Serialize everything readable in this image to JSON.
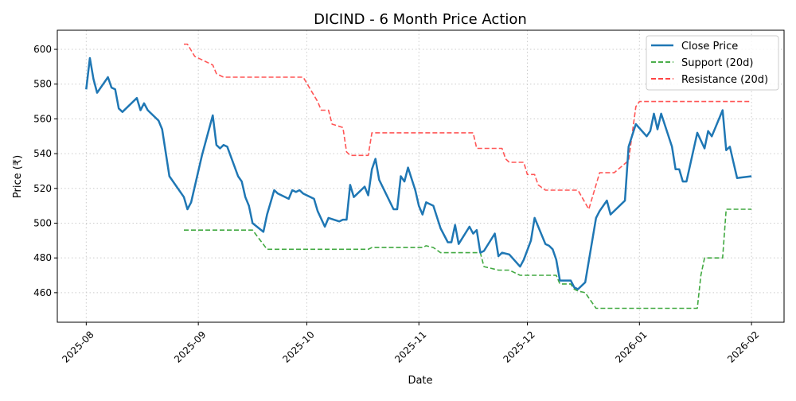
{
  "chart_data": {
    "type": "line",
    "title": "DICIND - 6 Month Price Action",
    "xlabel": "Date",
    "ylabel": "Price (₹)",
    "ylim": [
      443,
      611
    ],
    "xlim": [
      "2025-07-24",
      "2026-02-10"
    ],
    "grid": true,
    "legend_position": "top-right",
    "x_ticks": [
      "2025-08",
      "2025-09",
      "2025-10",
      "2025-11",
      "2025-12",
      "2026-01",
      "2026-02"
    ],
    "y_ticks": [
      460,
      480,
      500,
      520,
      540,
      560,
      580,
      600
    ],
    "series": [
      {
        "name": "Close Price",
        "color": "#1f77b4",
        "style": "solid",
        "points": [
          [
            "2025-08-01",
            577
          ],
          [
            "2025-08-02",
            595
          ],
          [
            "2025-08-03",
            583
          ],
          [
            "2025-08-04",
            575
          ],
          [
            "2025-08-07",
            584
          ],
          [
            "2025-08-08",
            578
          ],
          [
            "2025-08-09",
            577
          ],
          [
            "2025-08-10",
            566
          ],
          [
            "2025-08-11",
            564
          ],
          [
            "2025-08-15",
            572
          ],
          [
            "2025-08-16",
            565
          ],
          [
            "2025-08-17",
            569
          ],
          [
            "2025-08-18",
            565
          ],
          [
            "2025-08-21",
            559
          ],
          [
            "2025-08-22",
            554
          ],
          [
            "2025-08-24",
            527
          ],
          [
            "2025-08-28",
            515
          ],
          [
            "2025-08-29",
            508
          ],
          [
            "2025-08-30",
            512
          ],
          [
            "2025-09-02",
            539
          ],
          [
            "2025-09-05",
            562
          ],
          [
            "2025-09-06",
            545
          ],
          [
            "2025-09-07",
            543
          ],
          [
            "2025-09-08",
            545
          ],
          [
            "2025-09-09",
            544
          ],
          [
            "2025-09-12",
            527
          ],
          [
            "2025-09-13",
            524
          ],
          [
            "2025-09-14",
            515
          ],
          [
            "2025-09-15",
            510
          ],
          [
            "2025-09-16",
            500
          ],
          [
            "2025-09-19",
            495
          ],
          [
            "2025-09-20",
            505
          ],
          [
            "2025-09-22",
            519
          ],
          [
            "2025-09-23",
            517
          ],
          [
            "2025-09-26",
            514
          ],
          [
            "2025-09-27",
            519
          ],
          [
            "2025-09-28",
            518
          ],
          [
            "2025-09-29",
            519
          ],
          [
            "2025-09-30",
            517
          ],
          [
            "2025-10-03",
            514
          ],
          [
            "2025-10-04",
            507
          ],
          [
            "2025-10-06",
            498
          ],
          [
            "2025-10-07",
            503
          ],
          [
            "2025-10-10",
            501
          ],
          [
            "2025-10-11",
            502
          ],
          [
            "2025-10-12",
            502
          ],
          [
            "2025-10-13",
            522
          ],
          [
            "2025-10-14",
            515
          ],
          [
            "2025-10-17",
            521
          ],
          [
            "2025-10-18",
            516
          ],
          [
            "2025-10-19",
            531
          ],
          [
            "2025-10-20",
            537
          ],
          [
            "2025-10-21",
            525
          ],
          [
            "2025-10-25",
            508
          ],
          [
            "2025-10-26",
            508
          ],
          [
            "2025-10-27",
            527
          ],
          [
            "2025-10-28",
            524
          ],
          [
            "2025-10-29",
            532
          ],
          [
            "2025-10-31",
            519
          ],
          [
            "2025-11-01",
            510
          ],
          [
            "2025-11-02",
            505
          ],
          [
            "2025-11-03",
            512
          ],
          [
            "2025-11-05",
            510
          ],
          [
            "2025-11-07",
            497
          ],
          [
            "2025-11-09",
            489
          ],
          [
            "2025-11-10",
            489
          ],
          [
            "2025-11-11",
            499
          ],
          [
            "2025-11-12",
            488
          ],
          [
            "2025-11-15",
            498
          ],
          [
            "2025-11-16",
            494
          ],
          [
            "2025-11-17",
            496
          ],
          [
            "2025-11-18",
            483
          ],
          [
            "2025-11-19",
            484
          ],
          [
            "2025-11-22",
            494
          ],
          [
            "2025-11-23",
            481
          ],
          [
            "2025-11-24",
            483
          ],
          [
            "2025-11-26",
            482
          ],
          [
            "2025-11-29",
            475
          ],
          [
            "2025-11-30",
            479
          ],
          [
            "2025-12-02",
            490
          ],
          [
            "2025-12-03",
            503
          ],
          [
            "2025-12-06",
            488
          ],
          [
            "2025-12-07",
            487
          ],
          [
            "2025-12-08",
            485
          ],
          [
            "2025-12-09",
            479
          ],
          [
            "2025-12-10",
            467
          ],
          [
            "2025-12-13",
            467
          ],
          [
            "2025-12-14",
            463
          ],
          [
            "2025-12-15",
            462
          ],
          [
            "2025-12-17",
            466
          ],
          [
            "2025-12-20",
            503
          ],
          [
            "2025-12-21",
            507
          ],
          [
            "2025-12-23",
            513
          ],
          [
            "2025-12-24",
            505
          ],
          [
            "2025-12-28",
            513
          ],
          [
            "2025-12-29",
            544
          ],
          [
            "2025-12-31",
            557
          ],
          [
            "2026-01-03",
            550
          ],
          [
            "2026-01-04",
            553
          ],
          [
            "2026-01-05",
            563
          ],
          [
            "2026-01-06",
            554
          ],
          [
            "2026-01-07",
            563
          ],
          [
            "2026-01-10",
            544
          ],
          [
            "2026-01-11",
            531
          ],
          [
            "2026-01-12",
            531
          ],
          [
            "2026-01-13",
            524
          ],
          [
            "2026-01-14",
            524
          ],
          [
            "2026-01-17",
            552
          ],
          [
            "2026-01-19",
            543
          ],
          [
            "2026-01-20",
            553
          ],
          [
            "2026-01-21",
            550
          ],
          [
            "2026-01-24",
            565
          ],
          [
            "2026-01-25",
            542
          ],
          [
            "2026-01-26",
            544
          ],
          [
            "2026-01-27",
            535
          ],
          [
            "2026-01-28",
            526
          ],
          [
            "2026-02-01",
            527
          ]
        ]
      },
      {
        "name": "Support (20d)",
        "color": "#2ca02c",
        "style": "dashed",
        "points": [
          [
            "2025-08-28",
            496
          ],
          [
            "2025-09-16",
            496
          ],
          [
            "2025-09-20",
            485
          ],
          [
            "2025-10-18",
            485
          ],
          [
            "2025-10-19",
            486
          ],
          [
            "2025-11-02",
            486
          ],
          [
            "2025-11-03",
            487
          ],
          [
            "2025-11-05",
            486
          ],
          [
            "2025-11-07",
            483
          ],
          [
            "2025-11-18",
            483
          ],
          [
            "2025-11-19",
            475
          ],
          [
            "2025-11-23",
            473
          ],
          [
            "2025-11-26",
            473
          ],
          [
            "2025-11-29",
            470
          ],
          [
            "2025-12-09",
            470
          ],
          [
            "2025-12-10",
            465
          ],
          [
            "2025-12-13",
            465
          ],
          [
            "2025-12-14",
            462
          ],
          [
            "2025-12-15",
            461
          ],
          [
            "2025-12-17",
            460
          ],
          [
            "2025-12-20",
            451
          ],
          [
            "2026-01-17",
            451
          ],
          [
            "2026-01-18",
            470
          ],
          [
            "2026-01-19",
            480
          ],
          [
            "2026-01-24",
            480
          ],
          [
            "2026-01-25",
            508
          ],
          [
            "2026-02-01",
            508
          ]
        ]
      },
      {
        "name": "Resistance (20d)",
        "color": "#ff4444",
        "style": "dashed",
        "points": [
          [
            "2025-08-28",
            603
          ],
          [
            "2025-08-29",
            603
          ],
          [
            "2025-08-31",
            596
          ],
          [
            "2025-09-05",
            591
          ],
          [
            "2025-09-06",
            586
          ],
          [
            "2025-09-08",
            584
          ],
          [
            "2025-09-30",
            584
          ],
          [
            "2025-10-04",
            570
          ],
          [
            "2025-10-05",
            565
          ],
          [
            "2025-10-07",
            565
          ],
          [
            "2025-10-08",
            557
          ],
          [
            "2025-10-11",
            555
          ],
          [
            "2025-10-12",
            541
          ],
          [
            "2025-10-13",
            539
          ],
          [
            "2025-10-18",
            539
          ],
          [
            "2025-10-19",
            552
          ],
          [
            "2025-11-16",
            552
          ],
          [
            "2025-11-17",
            543
          ],
          [
            "2025-11-24",
            543
          ],
          [
            "2025-11-25",
            537
          ],
          [
            "2025-11-26",
            535
          ],
          [
            "2025-11-30",
            535
          ],
          [
            "2025-12-01",
            528
          ],
          [
            "2025-12-03",
            528
          ],
          [
            "2025-12-04",
            522
          ],
          [
            "2025-12-06",
            519
          ],
          [
            "2025-12-15",
            519
          ],
          [
            "2025-12-18",
            508
          ],
          [
            "2025-12-21",
            529
          ],
          [
            "2025-12-25",
            529
          ],
          [
            "2025-12-29",
            536
          ],
          [
            "2025-12-31",
            567
          ],
          [
            "2026-01-01",
            570
          ],
          [
            "2026-02-01",
            570
          ]
        ]
      }
    ]
  }
}
